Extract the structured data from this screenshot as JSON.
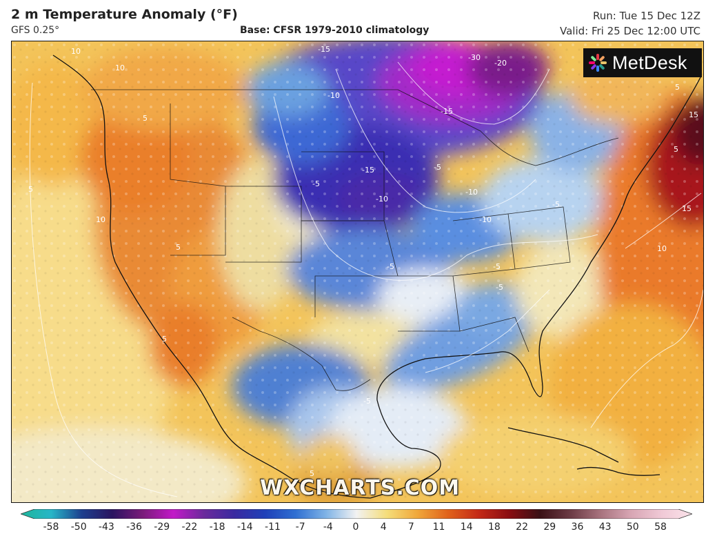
{
  "header": {
    "title": "2 m Temperature Anomaly (°F)",
    "model": "GFS 0.25°",
    "base": "Base: CFSR 1979-2010 climatology",
    "run": "Run: Tue 15 Dec 12Z",
    "valid": "Valid: Fri 25 Dec 12:00 UTC"
  },
  "logo": {
    "text": "MetDesk",
    "icon": "metdesk-star-icon"
  },
  "watermark": "WXCHARTS.COM",
  "colorbar": {
    "ticks": [
      "-58",
      "-50",
      "-43",
      "-36",
      "-29",
      "-22",
      "-18",
      "-14",
      "-11",
      "-7",
      "-4",
      "0",
      "4",
      "7",
      "11",
      "14",
      "18",
      "22",
      "29",
      "36",
      "43",
      "50",
      "58"
    ],
    "colors": [
      "#1fb59a",
      "#27b6c8",
      "#1d3f8e",
      "#2a1460",
      "#7a1b7a",
      "#c21ac8",
      "#6b2a9c",
      "#3a2aa0",
      "#1f40b8",
      "#2f6fd2",
      "#7fb3e6",
      "#f2f2f2",
      "#f5dd7a",
      "#f0a73a",
      "#e0621b",
      "#c42a17",
      "#8a0d12",
      "#3a1015",
      "#6b3a44",
      "#a8737e",
      "#d8a6b4",
      "#f0c9d6",
      "#fbe3ea"
    ]
  },
  "contour_labels": [
    "-30",
    "-20",
    "-15",
    "-15",
    "-15",
    "-10",
    "-10",
    "-10",
    "-10",
    "-5",
    "-5",
    "-5",
    "-5",
    "-5",
    "-5",
    "-5",
    "5",
    "5",
    "5",
    "5",
    "5",
    "5",
    "5",
    "10",
    "10",
    "10",
    "10",
    "15",
    "15"
  ]
}
